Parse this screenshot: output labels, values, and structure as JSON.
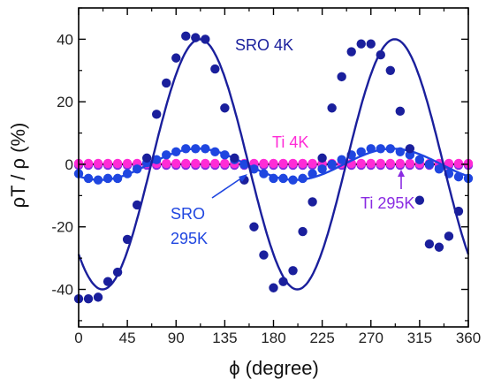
{
  "chart_data": {
    "type": "scatter",
    "xlabel": "ϕ (degree)",
    "ylabel": "ρT / ρ (%)",
    "xlim": [
      0,
      360
    ],
    "ylim": [
      -52,
      50
    ],
    "xticks": [
      0,
      45,
      90,
      135,
      180,
      225,
      270,
      315,
      360
    ],
    "yticks": [
      -40,
      -20,
      0,
      20,
      40
    ],
    "grid": false,
    "zero_line": true,
    "colors": {
      "sro4k": "#1a1f9c",
      "sro295k": "#1f46e0",
      "ti4k": "#ff2bd6",
      "ti295k": "#8a2be2",
      "axes": "#000000"
    },
    "annotations": {
      "sro4k": "SRO 4K",
      "ti4k": "Ti 4K",
      "sro295k_line1": "SRO",
      "sro295k_line2": "295K",
      "ti295k": "Ti 295K"
    },
    "series": [
      {
        "name": "SRO 4K",
        "kind": "points",
        "x": [
          0,
          9,
          18,
          27,
          36,
          45,
          54,
          63,
          72,
          81,
          90,
          99,
          108,
          117,
          126,
          135,
          144,
          153,
          162,
          171,
          180,
          189,
          198,
          207,
          216,
          225,
          234,
          243,
          252,
          261,
          270,
          279,
          288,
          297,
          306,
          315,
          324,
          333,
          342,
          351
        ],
        "y": [
          -43,
          -43,
          -42.5,
          -37.5,
          -34.5,
          -24,
          -13,
          2,
          16,
          26,
          34,
          41,
          40.5,
          40,
          30.5,
          18,
          2,
          -5,
          -20,
          -29,
          -39.5,
          -37.5,
          -34,
          -21.5,
          -12,
          2,
          18,
          28,
          36,
          38.5,
          38.5,
          35,
          30,
          17,
          5,
          -11.5,
          -25.5,
          -26.5,
          -23,
          -15
        ]
      },
      {
        "name": "SRO 4K fit",
        "kind": "line",
        "amplitude": 40,
        "period": 180,
        "zero_crossing": 67
      },
      {
        "name": "SRO 295K",
        "kind": "points",
        "x": [
          0,
          9,
          18,
          27,
          36,
          45,
          54,
          63,
          72,
          81,
          90,
          99,
          108,
          117,
          126,
          135,
          144,
          153,
          162,
          171,
          180,
          189,
          198,
          207,
          216,
          225,
          234,
          243,
          252,
          261,
          270,
          279,
          288,
          297,
          306,
          315,
          324,
          333,
          342,
          351,
          360
        ],
        "y": [
          -3,
          -4.5,
          -5,
          -4.5,
          -4.5,
          -3,
          -1.5,
          0.5,
          1.5,
          3,
          4,
          5,
          5,
          5,
          4,
          3,
          1.5,
          0,
          -1.5,
          -3,
          -4.5,
          -4.5,
          -5,
          -4.5,
          -3,
          -1.5,
          0,
          1.5,
          3,
          4,
          5,
          5,
          5,
          4,
          3,
          1.5,
          0,
          -1.5,
          -3,
          -4,
          -4.5
        ]
      },
      {
        "name": "SRO 295K fit",
        "kind": "line",
        "amplitude": 5,
        "period": 180,
        "zero_crossing": 65
      },
      {
        "name": "Ti 4K",
        "kind": "points",
        "x": [
          0,
          9,
          18,
          27,
          36,
          45,
          54,
          63,
          72,
          81,
          90,
          99,
          108,
          117,
          126,
          135,
          144,
          153,
          162,
          171,
          180,
          189,
          198,
          207,
          216,
          225,
          234,
          243,
          252,
          261,
          270,
          279,
          288,
          297,
          306,
          315,
          324,
          333,
          342,
          351,
          360
        ],
        "y": [
          0.3,
          0.3,
          0.3,
          0.3,
          0.3,
          0.3,
          0.3,
          0.3,
          0.3,
          0.3,
          0.3,
          0.3,
          0.3,
          0.3,
          0.3,
          0.3,
          0.3,
          0.3,
          0.3,
          0.3,
          0.3,
          0.3,
          0.3,
          0.3,
          0.3,
          0.3,
          0.3,
          0.3,
          0.3,
          0.3,
          0.3,
          0.3,
          0.3,
          0.3,
          0.3,
          0.3,
          0.3,
          0.3,
          0.3,
          0.3,
          0.3
        ]
      },
      {
        "name": "Ti 295K",
        "kind": "points",
        "x": [
          0,
          9,
          18,
          27,
          36,
          45,
          54,
          63,
          72,
          81,
          90,
          99,
          108,
          117,
          126,
          135,
          144,
          153,
          162,
          171,
          180,
          189,
          198,
          207,
          216,
          225,
          234,
          243,
          252,
          261,
          270,
          279,
          288,
          297,
          306,
          315,
          324,
          333,
          342,
          351,
          360
        ],
        "y": [
          -0.3,
          -0.3,
          -0.3,
          -0.3,
          -0.3,
          -0.3,
          -0.3,
          -0.3,
          -0.3,
          -0.3,
          -0.3,
          -0.3,
          -0.3,
          -0.3,
          -0.3,
          -0.3,
          -0.3,
          -0.3,
          -0.3,
          -0.3,
          -0.3,
          -0.3,
          -0.3,
          -0.3,
          -0.3,
          -0.3,
          -0.3,
          -0.3,
          -0.3,
          -0.3,
          -0.3,
          -0.3,
          -0.3,
          -0.3,
          -0.3,
          -0.3,
          -0.3,
          -0.3,
          -0.3,
          -0.3,
          -0.3
        ]
      }
    ]
  }
}
